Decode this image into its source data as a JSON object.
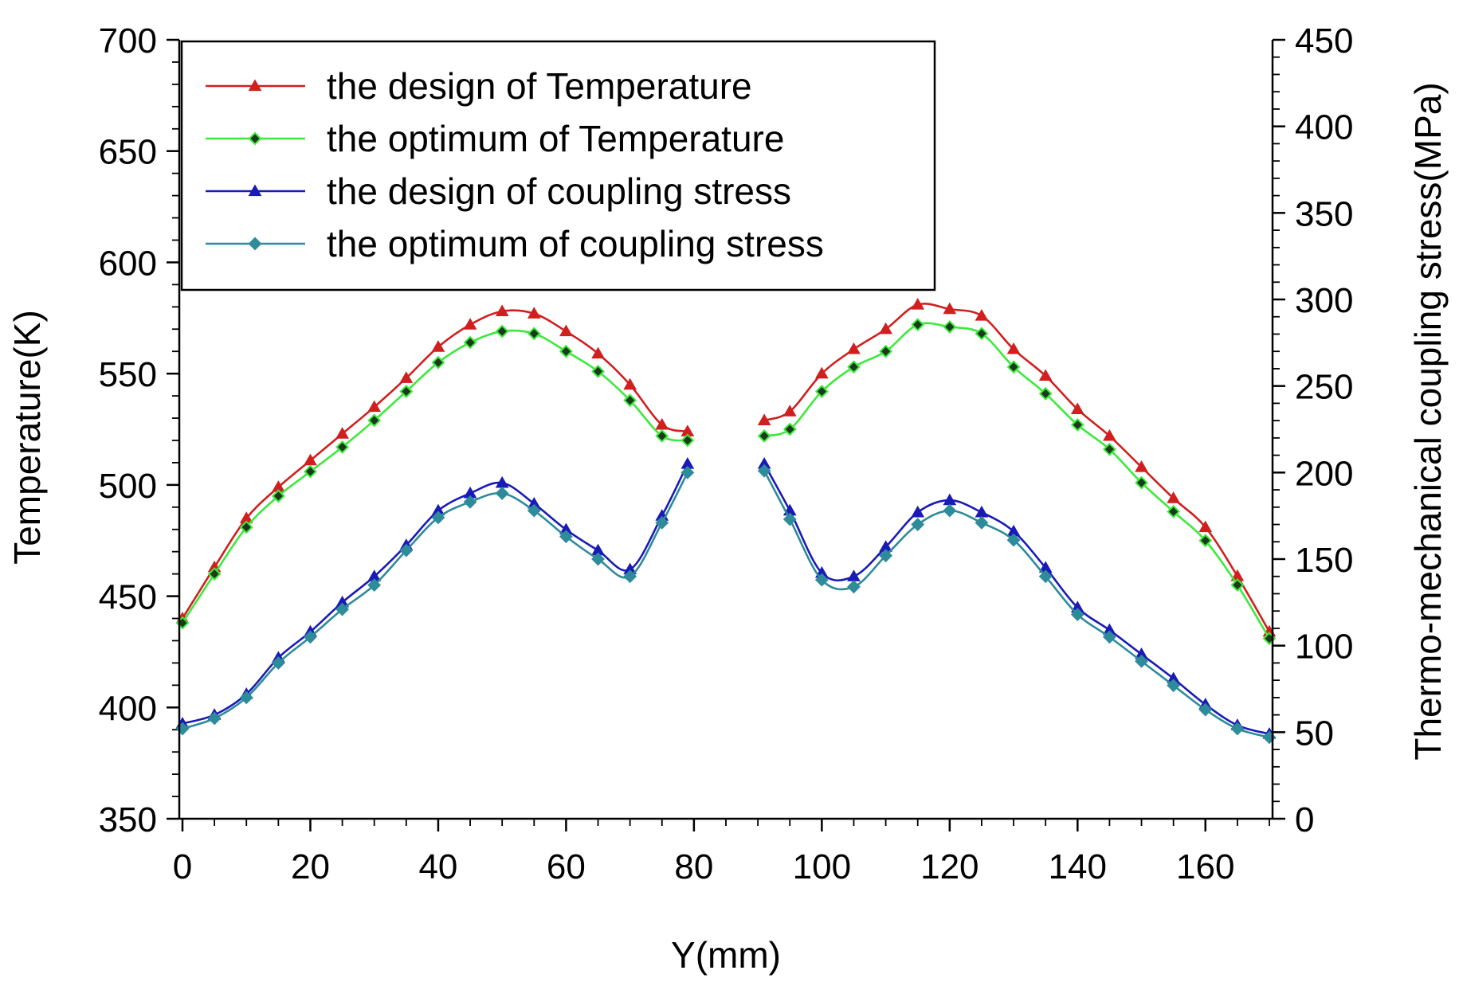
{
  "chart_data": {
    "type": "line",
    "xlabel": "Y(mm)",
    "ylabel_left": "Temperature(K)",
    "ylabel_right": "Thermo-mechanical coupling stress(MPa)",
    "xlim": [
      0,
      170
    ],
    "ylim_left": [
      350,
      700
    ],
    "ylim_right": [
      0,
      450
    ],
    "x_ticks": [
      0,
      20,
      40,
      60,
      80,
      100,
      120,
      140,
      160
    ],
    "y_left_ticks": [
      350,
      400,
      450,
      500,
      550,
      600,
      650,
      700
    ],
    "y_right_ticks": [
      0,
      50,
      100,
      150,
      200,
      250,
      300,
      350,
      400,
      450
    ],
    "legend_position": "top-left",
    "series": [
      {
        "name": "the design of Temperature",
        "axis": "left",
        "color": "#d11f1f",
        "marker": "triangle",
        "segments": [
          {
            "x": [
              0,
              5,
              10,
              15,
              20,
              25,
              30,
              35,
              40,
              45,
              50,
              55,
              60,
              65,
              70,
              75,
              79
            ],
            "y": [
              440,
              463,
              485,
              499,
              511,
              523,
              535,
              548,
              562,
              572,
              578,
              577,
              569,
              559,
              545,
              527,
              524
            ]
          },
          {
            "x": [
              91,
              95,
              100,
              105,
              110,
              115,
              120,
              125,
              130,
              135,
              140,
              145,
              150,
              155,
              160,
              165,
              170
            ],
            "y": [
              529,
              533,
              550,
              561,
              570,
              581,
              579,
              576,
              561,
              549,
              534,
              522,
              508,
              494,
              481,
              459,
              434
            ]
          }
        ]
      },
      {
        "name": "the optimum of Temperature",
        "axis": "left",
        "color": "#2ee82e",
        "marker": "diamond",
        "segments": [
          {
            "x": [
              0,
              5,
              10,
              15,
              20,
              25,
              30,
              35,
              40,
              45,
              50,
              55,
              60,
              65,
              70,
              75,
              79
            ],
            "y": [
              438,
              460,
              481,
              495,
              506,
              517,
              529,
              542,
              555,
              564,
              569,
              568,
              560,
              551,
              538,
              522,
              520
            ]
          },
          {
            "x": [
              91,
              95,
              100,
              105,
              110,
              115,
              120,
              125,
              130,
              135,
              140,
              145,
              150,
              155,
              160,
              165,
              170
            ],
            "y": [
              522,
              525,
              542,
              553,
              560,
              572,
              571,
              568,
              553,
              541,
              527,
              516,
              501,
              488,
              475,
              455,
              431
            ]
          }
        ]
      },
      {
        "name": "the design of coupling stress",
        "axis": "right",
        "color": "#1a1ab8",
        "marker": "triangle",
        "segments": [
          {
            "x": [
              0,
              5,
              10,
              15,
              20,
              25,
              30,
              35,
              40,
              45,
              50,
              55,
              60,
              65,
              70,
              75,
              79
            ],
            "y": [
              55,
              60,
              72,
              93,
              108,
              125,
              140,
              158,
              178,
              188,
              194,
              182,
              167,
              155,
              144,
              175,
              205
            ]
          },
          {
            "x": [
              91,
              95,
              100,
              105,
              110,
              115,
              120,
              125,
              130,
              135,
              140,
              145,
              150,
              155,
              160,
              165,
              170
            ],
            "y": [
              205,
              178,
              142,
              140,
              157,
              177,
              184,
              177,
              166,
              145,
              122,
              109,
              95,
              81,
              66,
              54,
              49
            ]
          }
        ]
      },
      {
        "name": "the optimum of coupling stress",
        "axis": "right",
        "color": "#2e8b9a",
        "marker": "diamond",
        "segments": [
          {
            "x": [
              0,
              5,
              10,
              15,
              20,
              25,
              30,
              35,
              40,
              45,
              50,
              55,
              60,
              65,
              70,
              75,
              79
            ],
            "y": [
              52,
              58,
              70,
              90,
              105,
              121,
              135,
              155,
              174,
              183,
              188,
              178,
              163,
              150,
              140,
              171,
              200
            ]
          },
          {
            "x": [
              91,
              95,
              100,
              105,
              110,
              115,
              120,
              125,
              130,
              135,
              140,
              145,
              150,
              155,
              160,
              165,
              170
            ],
            "y": [
              201,
              173,
              138,
              134,
              152,
              170,
              178,
              171,
              161,
              140,
              118,
              105,
              91,
              77,
              63,
              52,
              47
            ]
          }
        ]
      }
    ]
  }
}
